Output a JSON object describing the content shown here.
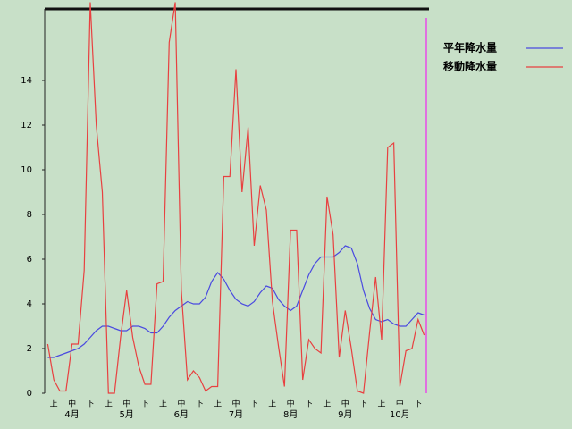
{
  "chart_data": {
    "type": "line",
    "ylim": [
      0,
      17.2
    ],
    "yticks": [
      0,
      2,
      4,
      6,
      8,
      10,
      12,
      14
    ],
    "categories": [
      null,
      "上",
      null,
      null,
      "中",
      null,
      null,
      "下",
      null,
      null,
      "上",
      null,
      null,
      "中",
      null,
      null,
      "下",
      null,
      null,
      "上",
      null,
      null,
      "中",
      null,
      null,
      "下",
      null,
      null,
      "上",
      null,
      null,
      "中",
      null,
      null,
      "下",
      null,
      null,
      "上",
      null,
      null,
      "中",
      null,
      null,
      "下",
      null,
      null,
      "上",
      null,
      null,
      "中",
      null,
      null,
      "下",
      null,
      null,
      "上",
      null,
      null,
      "中",
      null,
      null,
      "下",
      null
    ],
    "months": [
      "4月",
      "5月",
      "6月",
      "7月",
      "8月",
      "9月",
      "10月"
    ],
    "series": [
      {
        "name": "平年降水量",
        "color": "#4a4ae0",
        "values": [
          1.6,
          1.6,
          1.7,
          1.8,
          1.9,
          2.0,
          2.2,
          2.5,
          2.8,
          3.0,
          3.0,
          2.9,
          2.8,
          2.8,
          3.0,
          3.0,
          2.9,
          2.7,
          2.7,
          3.0,
          3.4,
          3.7,
          3.9,
          4.1,
          4.0,
          4.0,
          4.3,
          5.0,
          5.4,
          5.1,
          4.6,
          4.2,
          4.0,
          3.9,
          4.1,
          4.5,
          4.8,
          4.7,
          4.2,
          3.9,
          3.7,
          3.9,
          4.6,
          5.3,
          5.8,
          6.1,
          6.1,
          6.1,
          6.3,
          6.6,
          6.5,
          5.8,
          4.6,
          3.8,
          3.3,
          3.2,
          3.3,
          3.1,
          3.0,
          3.0,
          3.3,
          3.6,
          3.5
        ]
      },
      {
        "name": "移動降水量",
        "color": "#e84040",
        "values": [
          2.2,
          0.6,
          0.1,
          0.1,
          2.2,
          2.2,
          5.5,
          17.5,
          12,
          9,
          0,
          0,
          2.5,
          4.6,
          2.5,
          1.2,
          0.4,
          0.4,
          4.9,
          5,
          15.7,
          17.5,
          4.6,
          0.6,
          1,
          0.7,
          0.1,
          0.3,
          0.3,
          9.7,
          9.7,
          14.5,
          9,
          11.9,
          6.6,
          9.3,
          8.2,
          4.1,
          2.1,
          0.3,
          7.3,
          7.3,
          0.6,
          2.4,
          2,
          1.8,
          8.8,
          7.1,
          1.6,
          3.7,
          2,
          0.1,
          0,
          2.7,
          5.2,
          2.4,
          11,
          11.2,
          0.3,
          1.9,
          2,
          3.3,
          2.6
        ]
      }
    ]
  }
}
